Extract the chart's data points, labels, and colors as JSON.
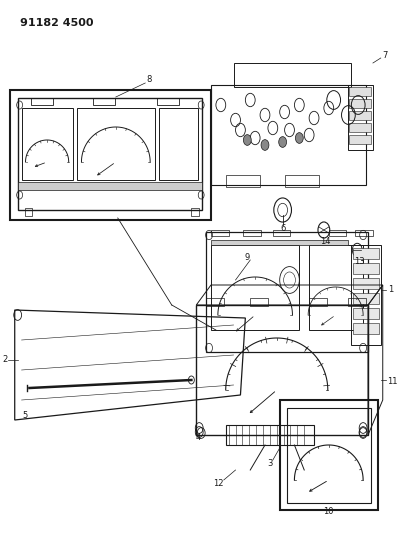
{
  "title": "91182 4500",
  "bg_color": "#ffffff",
  "line_color": "#1a1a1a",
  "fig_width": 3.98,
  "fig_height": 5.33,
  "dpi": 100
}
